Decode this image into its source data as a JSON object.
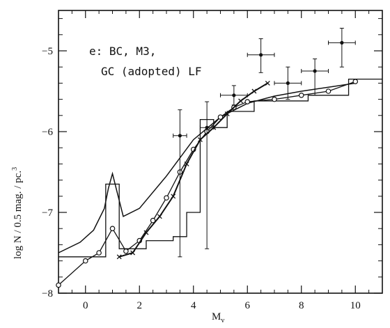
{
  "chart_data": {
    "type": "line",
    "xlabel": "M",
    "xlabel_sub": "v",
    "ylabel": "log N / 0.5 mag. / pc.",
    "ylabel_sup": "3",
    "xlim": [
      -1,
      11
    ],
    "ylim": [
      -8,
      -4.5
    ],
    "grid": false,
    "x_ticks": [
      0,
      2,
      4,
      6,
      8,
      10
    ],
    "y_ticks": [
      -8,
      -7,
      -6,
      -5
    ],
    "x_tick_labels": [
      "0",
      "2",
      "4",
      "6",
      "8",
      "10"
    ],
    "y_tick_labels": [
      "−8",
      "−7",
      "−6",
      "−5"
    ],
    "annotation": [
      "e: BC, M3,",
      "GC (adopted) LF"
    ],
    "series": [
      {
        "style": "histogram",
        "x": [
          -1,
          0.5,
          0.75,
          1.25,
          2.25,
          3.25,
          3.75,
          4.25,
          4.75,
          5.25,
          6.25,
          8.25,
          9.75,
          11
        ],
        "y": [
          -7.55,
          -7.55,
          -6.65,
          -7.45,
          -7.35,
          -7.3,
          -7.0,
          -5.85,
          -5.95,
          -5.75,
          -5.62,
          -5.55,
          -5.35,
          -5.25
        ]
      },
      {
        "style": "line",
        "x": [
          -1,
          -0.2,
          0.3,
          0.7,
          0.85,
          1.0,
          1.15,
          1.4,
          2,
          3,
          4,
          5,
          6,
          7,
          8,
          9,
          10
        ],
        "y": [
          -7.5,
          -7.37,
          -7.22,
          -6.95,
          -6.7,
          -6.52,
          -6.72,
          -7.05,
          -6.95,
          -6.55,
          -6.1,
          -5.82,
          -5.65,
          -5.56,
          -5.5,
          -5.45,
          -5.4
        ]
      },
      {
        "style": "circles",
        "x": [
          -1,
          0,
          0.5,
          1.0,
          1.5,
          2.0,
          2.5,
          3.0,
          3.5,
          4.0,
          4.5,
          5.0,
          5.5,
          6.0,
          7.0,
          8.0,
          9.0,
          10.0
        ],
        "y": [
          -7.9,
          -7.6,
          -7.5,
          -7.2,
          -7.48,
          -7.35,
          -7.1,
          -6.82,
          -6.5,
          -6.22,
          -6.0,
          -5.82,
          -5.7,
          -5.63,
          -5.6,
          -5.55,
          -5.5,
          -5.38
        ]
      },
      {
        "style": "crosses",
        "x": [
          1.25,
          1.75,
          2.25,
          2.75,
          3.25,
          3.75,
          4.25,
          4.75,
          5.25,
          5.75,
          6.25,
          6.75
        ],
        "y": [
          -7.55,
          -7.5,
          -7.25,
          -7.05,
          -6.8,
          -6.4,
          -6.1,
          -5.95,
          -5.78,
          -5.62,
          -5.5,
          -5.4
        ]
      },
      {
        "style": "errorbar_points",
        "x": [
          3.5,
          4.5,
          5.5,
          6.5,
          7.5,
          8.5,
          9.5
        ],
        "y": [
          -6.05,
          -5.95,
          -5.55,
          -5.05,
          -5.4,
          -5.25,
          -4.9
        ],
        "xerr": [
          0.25,
          0.25,
          0.5,
          0.5,
          0.5,
          0.5,
          0.5
        ],
        "yerr_low": [
          1.5,
          1.5,
          0.12,
          0.22,
          0.2,
          0.3,
          0.3
        ],
        "yerr_high": [
          0.32,
          0.32,
          0.12,
          0.2,
          0.2,
          0.15,
          0.18
        ]
      }
    ]
  }
}
